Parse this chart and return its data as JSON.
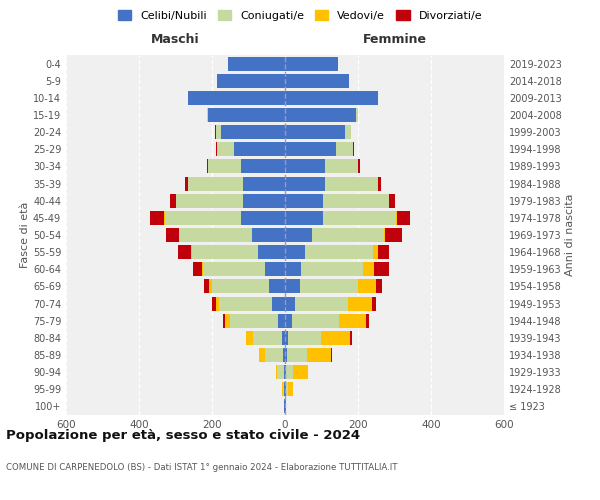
{
  "age_groups": [
    "100+",
    "95-99",
    "90-94",
    "85-89",
    "80-84",
    "75-79",
    "70-74",
    "65-69",
    "60-64",
    "55-59",
    "50-54",
    "45-49",
    "40-44",
    "35-39",
    "30-34",
    "25-29",
    "20-24",
    "15-19",
    "10-14",
    "5-9",
    "0-4"
  ],
  "birth_years": [
    "≤ 1923",
    "1924-1928",
    "1929-1933",
    "1934-1938",
    "1939-1943",
    "1944-1948",
    "1949-1953",
    "1954-1958",
    "1959-1963",
    "1964-1968",
    "1969-1973",
    "1974-1978",
    "1979-1983",
    "1984-1988",
    "1989-1993",
    "1994-1998",
    "1999-2003",
    "2004-2008",
    "2009-2013",
    "2014-2018",
    "2019-2023"
  ],
  "male": {
    "celibi": [
      2,
      2,
      3,
      5,
      8,
      20,
      35,
      45,
      55,
      75,
      90,
      120,
      115,
      115,
      120,
      140,
      175,
      210,
      265,
      185,
      155
    ],
    "coniugati": [
      0,
      4,
      18,
      50,
      80,
      130,
      145,
      155,
      170,
      180,
      200,
      210,
      185,
      150,
      90,
      45,
      15,
      5,
      0,
      0,
      0
    ],
    "vedovi": [
      0,
      2,
      5,
      15,
      18,
      15,
      10,
      8,
      3,
      2,
      1,
      1,
      0,
      0,
      0,
      0,
      0,
      0,
      0,
      0,
      0
    ],
    "divorziati": [
      0,
      0,
      0,
      0,
      2,
      5,
      10,
      15,
      25,
      35,
      35,
      40,
      15,
      8,
      5,
      3,
      2,
      0,
      0,
      0,
      0
    ]
  },
  "female": {
    "nubili": [
      2,
      2,
      3,
      5,
      8,
      18,
      28,
      40,
      45,
      55,
      75,
      105,
      105,
      110,
      110,
      140,
      165,
      195,
      255,
      175,
      145
    ],
    "coniugate": [
      0,
      5,
      20,
      55,
      90,
      130,
      145,
      160,
      170,
      185,
      195,
      200,
      180,
      145,
      90,
      45,
      15,
      5,
      0,
      0,
      0
    ],
    "vedove": [
      2,
      15,
      40,
      65,
      80,
      75,
      65,
      50,
      30,
      15,
      5,
      3,
      1,
      0,
      0,
      0,
      0,
      0,
      0,
      0,
      0
    ],
    "divorziate": [
      0,
      0,
      0,
      5,
      5,
      8,
      12,
      15,
      40,
      30,
      45,
      35,
      15,
      8,
      5,
      3,
      1,
      0,
      0,
      0,
      0
    ]
  },
  "colors": {
    "celibi": "#4472c4",
    "coniugati": "#c5d9a0",
    "vedovi": "#ffc000",
    "divorziati": "#c0000b"
  },
  "title": "Popolazione per età, sesso e stato civile - 2024",
  "subtitle": "COMUNE DI CARPENEDOLO (BS) - Dati ISTAT 1° gennaio 2024 - Elaborazione TUTTITALIA.IT",
  "xlabel_left": "Maschi",
  "xlabel_right": "Femmine",
  "ylabel_left": "Fasce di età",
  "ylabel_right": "Anni di nascita",
  "xlim": 600,
  "legend_labels": [
    "Celibi/Nubili",
    "Coniugati/e",
    "Vedovi/e",
    "Divorziati/e"
  ],
  "bg_color": "#ffffff",
  "plot_bg": "#f0f0f0"
}
